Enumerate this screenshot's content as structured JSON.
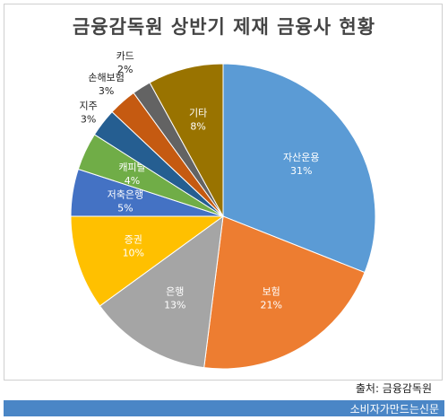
{
  "chart_data": {
    "type": "pie",
    "title": "금융감독원 상반기 제재 금융사 현황",
    "categories": [
      "자산운용",
      "보험",
      "은행",
      "증권",
      "저축은행",
      "캐피탈",
      "지주",
      "손해보험",
      "카드",
      "기타"
    ],
    "values": [
      31,
      21,
      13,
      10,
      5,
      4,
      3,
      3,
      2,
      8
    ],
    "value_labels": [
      "31%",
      "21%",
      "13%",
      "10%",
      "5%",
      "4%",
      "3%",
      "3%",
      "2%",
      "8%"
    ],
    "colors": [
      "#5b9bd5",
      "#ed7d31",
      "#a5a5a5",
      "#ffc000",
      "#4472c4",
      "#70ad47",
      "#255e91",
      "#c55a11",
      "#636363",
      "#997300"
    ],
    "legend": "none"
  },
  "source_text": "출처: 금융감독원",
  "footer_text": "소비자가만드는신문"
}
